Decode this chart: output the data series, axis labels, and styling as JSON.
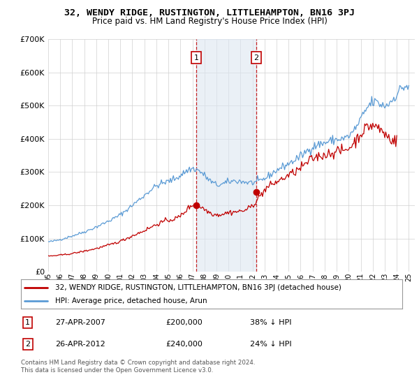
{
  "title": "32, WENDY RIDGE, RUSTINGTON, LITTLEHAMPTON, BN16 3PJ",
  "subtitle": "Price paid vs. HM Land Registry's House Price Index (HPI)",
  "hpi_color": "#5b9bd5",
  "price_color": "#c00000",
  "shade_color": "#dce6f1",
  "shade_alpha": 0.6,
  "ylim": [
    0,
    700000
  ],
  "xlim_min": 1995.0,
  "xlim_max": 2025.5,
  "purchase1_year": 2007.32,
  "purchase1_value": 200000,
  "purchase2_year": 2012.32,
  "purchase2_value": 240000,
  "legend_label_price": "32, WENDY RIDGE, RUSTINGTON, LITTLEHAMPTON, BN16 3PJ (detached house)",
  "legend_label_hpi": "HPI: Average price, detached house, Arun",
  "note1_label": "1",
  "note1_date": "27-APR-2007",
  "note1_price": "£200,000",
  "note1_hpi": "38% ↓ HPI",
  "note2_label": "2",
  "note2_date": "26-APR-2012",
  "note2_price": "£240,000",
  "note2_hpi": "24% ↓ HPI",
  "copyright_text": "Contains HM Land Registry data © Crown copyright and database right 2024.\nThis data is licensed under the Open Government Licence v3.0.",
  "bg_color": "#ffffff",
  "grid_color": "#d0d0d0",
  "xtick_years": [
    1995,
    1996,
    1997,
    1998,
    1999,
    2000,
    2001,
    2002,
    2003,
    2004,
    2005,
    2006,
    2007,
    2008,
    2009,
    2010,
    2011,
    2012,
    2013,
    2014,
    2015,
    2016,
    2017,
    2018,
    2019,
    2020,
    2021,
    2022,
    2023,
    2024,
    2025
  ]
}
